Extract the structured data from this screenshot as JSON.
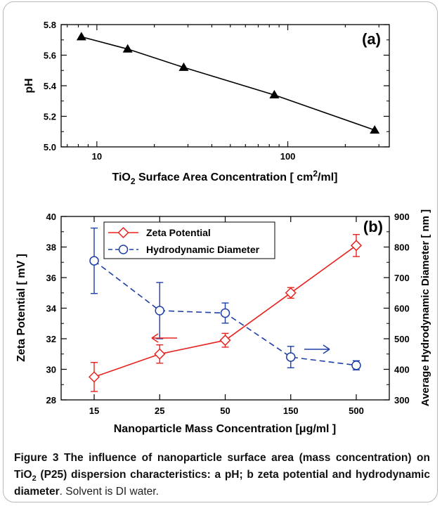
{
  "chart_data": [
    {
      "panel_label": "(a)",
      "type": "line",
      "x_scale": "log",
      "xlabel": "TiO2 Surface Area Concentration [ cm2/ml]",
      "xlabel_parts": {
        "pre": "TiO",
        "sub": "2",
        "mid": " Surface Area Concentration [ cm",
        "sup": "2",
        "post": "/ml]"
      },
      "ylabel": "pH",
      "xlim": [
        6.5,
        340
      ],
      "ylim": [
        5.0,
        5.8
      ],
      "x_ticks": [
        "10",
        "100"
      ],
      "y_ticks": [
        "5.0",
        "5.2",
        "5.4",
        "5.6",
        "5.8"
      ],
      "series": [
        {
          "x": [
            8.3,
            14.5,
            28.5,
            85,
            285
          ],
          "y": [
            5.72,
            5.64,
            5.52,
            5.34,
            5.11
          ],
          "color": "#000000",
          "marker": "triangle"
        }
      ]
    },
    {
      "panel_label": "(b)",
      "type": "line",
      "xlabel": "Nanoparticle Mass Concentration [μg/ml ]",
      "categories": [
        "15",
        "25",
        "50",
        "150",
        "500"
      ],
      "ylabel": "Zeta Potential [ mV ]",
      "ylim": [
        28,
        40
      ],
      "y_ticks": [
        "28",
        "30",
        "32",
        "34",
        "36",
        "38",
        "40"
      ],
      "ylabel_right": "Average Hydrodynamic Diameter [ nm ]",
      "ylim_right": [
        300,
        900
      ],
      "y_ticks_right": [
        "300",
        "400",
        "500",
        "600",
        "700",
        "800",
        "900"
      ],
      "legend_position": "top-left",
      "series": [
        {
          "name": "Zeta Potential",
          "axis": "left",
          "values": [
            29.5,
            31.0,
            31.9,
            35.0,
            38.1
          ],
          "err": [
            0.95,
            0.6,
            0.45,
            0.35,
            0.72
          ],
          "color": "#e8231f",
          "marker": "diamond",
          "dash": "solid"
        },
        {
          "name": "Hydrodynamic Diameter",
          "axis": "right",
          "values": [
            755,
            592,
            584,
            440,
            413
          ],
          "err": [
            107,
            92,
            33,
            35,
            15
          ],
          "color": "#1f3fa8",
          "marker": "circle",
          "dash": "dashed"
        }
      ]
    }
  ],
  "caption": {
    "figure_label": "Figure 3",
    "bold_1": " The influence of nanoparticle surface area (mass concentration) on TiO",
    "bold_sub": "2",
    "bold_2": " (P25) dispersion characteristics: a pH; b zeta potential and hydrodynamic diameter",
    "normal": ". Solvent is DI water."
  }
}
